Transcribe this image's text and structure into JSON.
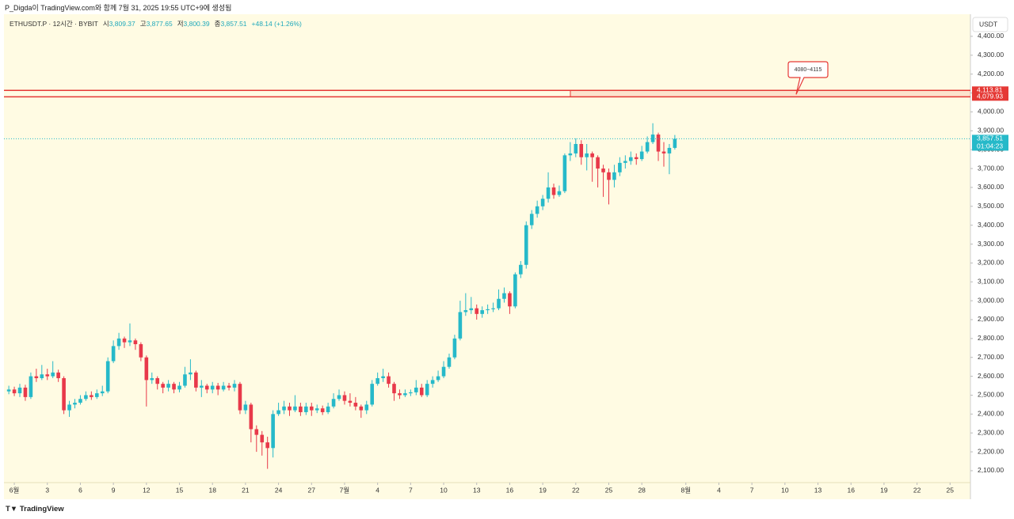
{
  "header": "P_Digda이 TradingView.com와 함께 7월 31, 2025 19:55 UTC+9에 생성됨",
  "footer_brand": "TradingView",
  "chart_data": {
    "type": "candlestick",
    "symbol": "ETHUSDT.P · 12시간 · BYBIT",
    "ohlc_legend": [
      {
        "label": "시",
        "value": "3,809.37"
      },
      {
        "label": "고",
        "value": "3,877.65"
      },
      {
        "label": "저",
        "value": "3,800.39"
      },
      {
        "label": "종",
        "value": "3,857.51"
      }
    ],
    "change": "+48.14 (+1.26%)",
    "y_unit": "USDT",
    "up_color": "#26b9c9",
    "down_color": "#e8394a",
    "level_color": "#e53935",
    "xlim": [
      -0.94,
      86.85
    ],
    "ylim": [
      2037,
      4517
    ],
    "xticks": [
      {
        "value": 0,
        "label": "6월"
      },
      3,
      6,
      9,
      12,
      15,
      18,
      21,
      24,
      27,
      {
        "value": 30,
        "label": "7월"
      },
      {
        "value": 33,
        "label": "4"
      },
      {
        "value": 36,
        "label": "7"
      },
      {
        "value": 39,
        "label": "10"
      },
      {
        "value": 42,
        "label": "13"
      },
      {
        "value": 45,
        "label": "16"
      },
      {
        "value": 48,
        "label": "19"
      },
      {
        "value": 51,
        "label": "22"
      },
      {
        "value": 54,
        "label": "25"
      },
      {
        "value": 57,
        "label": "28"
      },
      {
        "value": 61,
        "label": "8월"
      },
      {
        "value": 64,
        "label": "4"
      },
      {
        "value": 67,
        "label": "7"
      },
      {
        "value": 70,
        "label": "10"
      },
      {
        "value": 73,
        "label": "13"
      },
      {
        "value": 76,
        "label": "16"
      },
      {
        "value": 79,
        "label": "19"
      },
      {
        "value": 82,
        "label": "22"
      },
      {
        "value": 85,
        "label": "25"
      }
    ],
    "yticks": [
      {
        "value": 4400,
        "label": "4,400.00"
      },
      {
        "value": 4300,
        "label": "4,300.00"
      },
      {
        "value": 4200,
        "label": "4,200.00"
      },
      {
        "value": 4100,
        "label": "4,100.00"
      },
      {
        "value": 4000,
        "label": "4,000.00"
      },
      {
        "value": 3900,
        "label": "3,900.00"
      },
      {
        "value": 3800,
        "label": "3,800.00"
      },
      {
        "value": 3700,
        "label": "3,700.00"
      },
      {
        "value": 3600,
        "label": "3,600.00"
      },
      {
        "value": 3500,
        "label": "3,500.00"
      },
      {
        "value": 3400,
        "label": "3,400.00"
      },
      {
        "value": 3300,
        "label": "3,300.00"
      },
      {
        "value": 3200,
        "label": "3,200.00"
      },
      {
        "value": 3100,
        "label": "3,100.00"
      },
      {
        "value": 3000,
        "label": "3,000.00"
      },
      {
        "value": 2900,
        "label": "2,900.00"
      },
      {
        "value": 2800,
        "label": "2,800.00"
      },
      {
        "value": 2700,
        "label": "2,700.00"
      },
      {
        "value": 2600,
        "label": "2,600.00"
      },
      {
        "value": 2500,
        "label": "2,500.00"
      },
      {
        "value": 2400,
        "label": "2,400.00"
      },
      {
        "value": 2300,
        "label": "2,300.00"
      },
      {
        "value": 2200,
        "label": "2,200.00"
      },
      {
        "value": 2100,
        "label": "2,100.00"
      }
    ],
    "levels": [
      {
        "value": 4113.81,
        "label": "4,113.81"
      },
      {
        "value": 4079.93,
        "label": "4,079.93"
      }
    ],
    "zone_annotation": "4080~4115",
    "last_price_label": "3,857.51",
    "countdown": "01:04:23",
    "x": [
      -0.5,
      0,
      0.5,
      1,
      1.5,
      2,
      2.5,
      3,
      3.5,
      4,
      4.5,
      5,
      5.5,
      6,
      6.5,
      7,
      7.5,
      8,
      8.5,
      9,
      9.5,
      10,
      10.5,
      11,
      11.5,
      12,
      12.5,
      13,
      13.5,
      14,
      14.5,
      15,
      15.5,
      16,
      16.5,
      17,
      17.5,
      18,
      18.5,
      19,
      19.5,
      20,
      20.5,
      21,
      21.5,
      22,
      22.5,
      23,
      23.5,
      24,
      24.5,
      25,
      25.5,
      26,
      26.5,
      27,
      27.5,
      28,
      28.5,
      29,
      29.5,
      30,
      30.5,
      31,
      31.5,
      32,
      32.5,
      33,
      33.5,
      34,
      34.5,
      35,
      35.5,
      36,
      36.5,
      37,
      37.5,
      38,
      38.5,
      39,
      39.5,
      40,
      40.5,
      41,
      41.5,
      42,
      42.5,
      43,
      43.5,
      44,
      44.5,
      45,
      45.5,
      46,
      46.5,
      47,
      47.5,
      48,
      48.5,
      49,
      49.5,
      50,
      50.5,
      51,
      51.5,
      52,
      52.5,
      53,
      53.5,
      54,
      54.5,
      55,
      55.5,
      56,
      56.5,
      57,
      57.5,
      58,
      58.5,
      59,
      59.5,
      60
    ],
    "open": [
      2520,
      2530,
      2510,
      2540,
      2490,
      2600,
      2590,
      2610,
      2600,
      2620,
      2590,
      2420,
      2450,
      2460,
      2480,
      2500,
      2490,
      2510,
      2520,
      2680,
      2760,
      2800,
      2780,
      2790,
      2770,
      2700,
      2580,
      2590,
      2560,
      2540,
      2560,
      2530,
      2550,
      2610,
      2620,
      2540,
      2550,
      2530,
      2550,
      2530,
      2550,
      2540,
      2560,
      2420,
      2450,
      2320,
      2290,
      2250,
      2220,
      2400,
      2420,
      2440,
      2420,
      2440,
      2410,
      2440,
      2420,
      2430,
      2410,
      2440,
      2480,
      2500,
      2470,
      2460,
      2440,
      2420,
      2450,
      2560,
      2590,
      2600,
      2560,
      2510,
      2500,
      2510,
      2515,
      2540,
      2500,
      2560,
      2580,
      2600,
      2650,
      2700,
      2800,
      2940,
      2950,
      2960,
      2930,
      2950,
      2955,
      2960,
      3010,
      3040,
      2970,
      3140,
      3190,
      3400,
      3460,
      3500,
      3540,
      3600,
      3560,
      3580,
      3770,
      3780,
      3830,
      3760,
      3780,
      3760,
      3700,
      3680,
      3640,
      3680,
      3730,
      3740,
      3760,
      3750,
      3790,
      3840,
      3880,
      3790,
      3780,
      3809.37
    ],
    "high": [
      2550,
      2545,
      2560,
      2555,
      2620,
      2640,
      2660,
      2640,
      2680,
      2635,
      2600,
      2470,
      2480,
      2500,
      2520,
      2520,
      2530,
      2550,
      2700,
      2790,
      2830,
      2810,
      2880,
      2800,
      2780,
      2710,
      2620,
      2600,
      2570,
      2580,
      2570,
      2570,
      2650,
      2690,
      2630,
      2580,
      2560,
      2570,
      2565,
      2570,
      2565,
      2580,
      2570,
      2470,
      2460,
      2340,
      2310,
      2280,
      2420,
      2460,
      2470,
      2460,
      2500,
      2460,
      2460,
      2460,
      2450,
      2445,
      2460,
      2510,
      2530,
      2520,
      2510,
      2490,
      2450,
      2470,
      2580,
      2620,
      2640,
      2620,
      2570,
      2530,
      2530,
      2530,
      2580,
      2560,
      2580,
      2600,
      2630,
      2680,
      2720,
      2820,
      3000,
      3040,
      3020,
      2980,
      2970,
      2980,
      2990,
      3060,
      3070,
      3050,
      3150,
      3210,
      3420,
      3480,
      3530,
      3560,
      3680,
      3620,
      3610,
      3780,
      3840,
      3860,
      3850,
      3830,
      3790,
      3770,
      3720,
      3700,
      3720,
      3760,
      3770,
      3790,
      3780,
      3820,
      3870,
      3940,
      3890,
      3840,
      3830,
      3877.65
    ],
    "low": [
      2505,
      2495,
      2490,
      2470,
      2480,
      2570,
      2580,
      2580,
      2590,
      2570,
      2400,
      2385,
      2430,
      2450,
      2470,
      2475,
      2480,
      2495,
      2510,
      2670,
      2740,
      2750,
      2760,
      2740,
      2680,
      2440,
      2560,
      2530,
      2510,
      2520,
      2510,
      2515,
      2540,
      2580,
      2520,
      2490,
      2510,
      2510,
      2500,
      2520,
      2525,
      2520,
      2400,
      2400,
      2250,
      2200,
      2180,
      2110,
      2170,
      2390,
      2400,
      2390,
      2410,
      2390,
      2395,
      2390,
      2405,
      2395,
      2400,
      2430,
      2470,
      2450,
      2440,
      2420,
      2380,
      2400,
      2440,
      2550,
      2570,
      2540,
      2470,
      2480,
      2490,
      2495,
      2500,
      2490,
      2490,
      2540,
      2570,
      2590,
      2640,
      2690,
      2790,
      2920,
      2930,
      2900,
      2910,
      2930,
      2940,
      2950,
      2990,
      2930,
      2960,
      3120,
      3170,
      3380,
      3440,
      3480,
      3520,
      3540,
      3550,
      3570,
      3740,
      3760,
      3720,
      3690,
      3630,
      3600,
      3550,
      3510,
      3600,
      3660,
      3700,
      3720,
      3720,
      3740,
      3780,
      3830,
      3740,
      3710,
      3670,
      3800.39
    ],
    "close": [
      2530,
      2510,
      2540,
      2490,
      2600,
      2590,
      2610,
      2600,
      2620,
      2590,
      2420,
      2450,
      2460,
      2480,
      2500,
      2490,
      2510,
      2520,
      2680,
      2760,
      2800,
      2780,
      2790,
      2770,
      2700,
      2580,
      2590,
      2560,
      2540,
      2560,
      2530,
      2550,
      2610,
      2620,
      2540,
      2550,
      2530,
      2550,
      2530,
      2550,
      2540,
      2560,
      2420,
      2450,
      2320,
      2290,
      2250,
      2220,
      2400,
      2420,
      2440,
      2420,
      2440,
      2410,
      2440,
      2420,
      2430,
      2410,
      2440,
      2480,
      2500,
      2470,
      2460,
      2440,
      2420,
      2450,
      2560,
      2590,
      2600,
      2560,
      2510,
      2500,
      2510,
      2515,
      2540,
      2500,
      2560,
      2580,
      2600,
      2650,
      2700,
      2800,
      2940,
      2950,
      2960,
      2930,
      2950,
      2955,
      2960,
      3010,
      3040,
      2970,
      3140,
      3190,
      3400,
      3460,
      3500,
      3540,
      3600,
      3560,
      3580,
      3770,
      3780,
      3830,
      3760,
      3780,
      3760,
      3700,
      3680,
      3640,
      3680,
      3730,
      3740,
      3760,
      3750,
      3790,
      3840,
      3880,
      3790,
      3780,
      3809.37,
      3857.51
    ]
  }
}
